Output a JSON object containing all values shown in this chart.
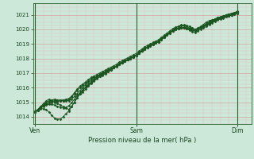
{
  "background_color": "#cce8d8",
  "grid_color_major": "#d8a0a0",
  "grid_color_minor": "#e8c0c0",
  "line_color": "#1a5520",
  "marker_color": "#1a5520",
  "xlabel": "Pression niveau de la mer( hPa )",
  "ylim": [
    1013.5,
    1021.8
  ],
  "yticks": [
    1014,
    1015,
    1016,
    1017,
    1018,
    1019,
    1020,
    1021
  ],
  "xtick_labels": [
    "Ven",
    "Sam",
    "Dim"
  ],
  "xtick_positions": [
    0.0,
    0.5,
    1.0
  ],
  "vline_positions": [
    0.0,
    0.5,
    1.0
  ],
  "n_points": 73,
  "series": [
    [
      1014.3,
      1014.5,
      1014.7,
      1014.9,
      1015.1,
      1015.2,
      1015.1,
      1015.0,
      1014.9,
      1014.8,
      1014.7,
      1014.6,
      1014.5,
      1014.7,
      1015.0,
      1015.3,
      1015.6,
      1015.8,
      1016.0,
      1016.2,
      1016.4,
      1016.5,
      1016.7,
      1016.9,
      1017.0,
      1017.1,
      1017.2,
      1017.3,
      1017.4,
      1017.5,
      1017.6,
      1017.7,
      1017.8,
      1017.9,
      1018.0,
      1018.1,
      1018.2,
      1018.35,
      1018.5,
      1018.65,
      1018.8,
      1018.9,
      1019.0,
      1019.1,
      1019.2,
      1019.35,
      1019.5,
      1019.65,
      1019.8,
      1019.9,
      1020.0,
      1020.05,
      1020.1,
      1020.1,
      1020.05,
      1020.0,
      1019.95,
      1019.9,
      1020.0,
      1020.1,
      1020.2,
      1020.35,
      1020.5,
      1020.6,
      1020.7,
      1020.8,
      1020.85,
      1020.9,
      1021.0,
      1021.05,
      1021.1,
      1021.15,
      1021.2
    ],
    [
      1014.3,
      1014.45,
      1014.55,
      1014.55,
      1014.5,
      1014.3,
      1014.1,
      1013.9,
      1013.85,
      1013.85,
      1014.0,
      1014.2,
      1014.4,
      1014.7,
      1015.0,
      1015.3,
      1015.55,
      1015.7,
      1015.9,
      1016.1,
      1016.3,
      1016.45,
      1016.6,
      1016.75,
      1016.9,
      1017.0,
      1017.1,
      1017.2,
      1017.35,
      1017.5,
      1017.65,
      1017.75,
      1017.85,
      1017.95,
      1018.05,
      1018.15,
      1018.25,
      1018.4,
      1018.55,
      1018.7,
      1018.8,
      1018.9,
      1019.0,
      1019.1,
      1019.2,
      1019.35,
      1019.5,
      1019.65,
      1019.8,
      1019.95,
      1020.1,
      1020.2,
      1020.3,
      1020.3,
      1020.25,
      1020.2,
      1020.1,
      1020.0,
      1020.1,
      1020.2,
      1020.35,
      1020.5,
      1020.6,
      1020.65,
      1020.7,
      1020.7,
      1020.75,
      1020.8,
      1020.9,
      1020.95,
      1021.0,
      1021.05,
      1021.1
    ],
    [
      1014.35,
      1014.5,
      1014.65,
      1014.75,
      1014.85,
      1014.95,
      1015.0,
      1015.05,
      1015.05,
      1015.1,
      1015.1,
      1015.1,
      1015.1,
      1015.2,
      1015.4,
      1015.6,
      1015.8,
      1016.0,
      1016.2,
      1016.35,
      1016.5,
      1016.6,
      1016.75,
      1016.85,
      1016.95,
      1017.05,
      1017.15,
      1017.25,
      1017.35,
      1017.45,
      1017.6,
      1017.7,
      1017.8,
      1017.9,
      1018.0,
      1018.1,
      1018.2,
      1018.35,
      1018.5,
      1018.65,
      1018.75,
      1018.85,
      1018.95,
      1019.05,
      1019.15,
      1019.3,
      1019.45,
      1019.6,
      1019.75,
      1019.9,
      1020.0,
      1020.05,
      1020.1,
      1020.1,
      1020.05,
      1020.0,
      1019.95,
      1019.9,
      1020.0,
      1020.1,
      1020.2,
      1020.3,
      1020.4,
      1020.5,
      1020.6,
      1020.7,
      1020.8,
      1020.85,
      1020.9,
      1020.95,
      1021.0,
      1021.1,
      1021.2
    ],
    [
      1014.35,
      1014.5,
      1014.65,
      1014.8,
      1014.9,
      1015.0,
      1015.1,
      1015.15,
      1015.1,
      1015.1,
      1015.1,
      1015.15,
      1015.2,
      1015.35,
      1015.6,
      1015.8,
      1016.0,
      1016.15,
      1016.3,
      1016.45,
      1016.6,
      1016.7,
      1016.8,
      1016.9,
      1017.0,
      1017.1,
      1017.2,
      1017.3,
      1017.4,
      1017.5,
      1017.65,
      1017.75,
      1017.85,
      1017.95,
      1018.05,
      1018.15,
      1018.25,
      1018.4,
      1018.55,
      1018.7,
      1018.8,
      1018.9,
      1019.0,
      1019.1,
      1019.2,
      1019.35,
      1019.5,
      1019.65,
      1019.8,
      1019.95,
      1020.05,
      1020.1,
      1020.15,
      1020.15,
      1020.1,
      1020.05,
      1020.0,
      1019.95,
      1020.05,
      1020.15,
      1020.25,
      1020.35,
      1020.45,
      1020.55,
      1020.65,
      1020.75,
      1020.8,
      1020.85,
      1020.9,
      1020.95,
      1021.0,
      1021.1,
      1021.2
    ],
    [
      1014.3,
      1014.45,
      1014.6,
      1014.7,
      1014.8,
      1014.85,
      1014.85,
      1014.8,
      1014.7,
      1014.65,
      1014.6,
      1014.65,
      1014.75,
      1014.95,
      1015.2,
      1015.45,
      1015.65,
      1015.85,
      1016.05,
      1016.2,
      1016.35,
      1016.5,
      1016.65,
      1016.75,
      1016.85,
      1016.95,
      1017.1,
      1017.2,
      1017.35,
      1017.5,
      1017.6,
      1017.7,
      1017.8,
      1017.9,
      1018.0,
      1018.1,
      1018.2,
      1018.35,
      1018.5,
      1018.65,
      1018.75,
      1018.85,
      1018.95,
      1019.05,
      1019.15,
      1019.3,
      1019.45,
      1019.6,
      1019.75,
      1019.9,
      1020.0,
      1020.05,
      1020.1,
      1020.1,
      1020.05,
      1019.95,
      1019.85,
      1019.8,
      1019.9,
      1020.0,
      1020.1,
      1020.2,
      1020.35,
      1020.45,
      1020.55,
      1020.65,
      1020.7,
      1020.75,
      1020.85,
      1020.9,
      1021.0,
      1021.05,
      1021.1
    ],
    [
      1014.35,
      1014.5,
      1014.7,
      1014.85,
      1015.0,
      1015.1,
      1015.15,
      1015.2,
      1015.15,
      1015.15,
      1015.15,
      1015.2,
      1015.25,
      1015.4,
      1015.65,
      1015.9,
      1016.1,
      1016.25,
      1016.4,
      1016.55,
      1016.7,
      1016.8,
      1016.9,
      1017.0,
      1017.1,
      1017.2,
      1017.3,
      1017.4,
      1017.5,
      1017.6,
      1017.75,
      1017.85,
      1017.95,
      1018.05,
      1018.15,
      1018.25,
      1018.35,
      1018.5,
      1018.65,
      1018.8,
      1018.9,
      1019.0,
      1019.1,
      1019.2,
      1019.3,
      1019.45,
      1019.6,
      1019.75,
      1019.9,
      1020.05,
      1020.15,
      1020.2,
      1020.25,
      1020.25,
      1020.2,
      1020.1,
      1020.0,
      1019.95,
      1020.05,
      1020.15,
      1020.25,
      1020.4,
      1020.5,
      1020.6,
      1020.7,
      1020.8,
      1020.85,
      1020.9,
      1021.0,
      1021.05,
      1021.1,
      1021.15,
      1021.25
    ]
  ]
}
